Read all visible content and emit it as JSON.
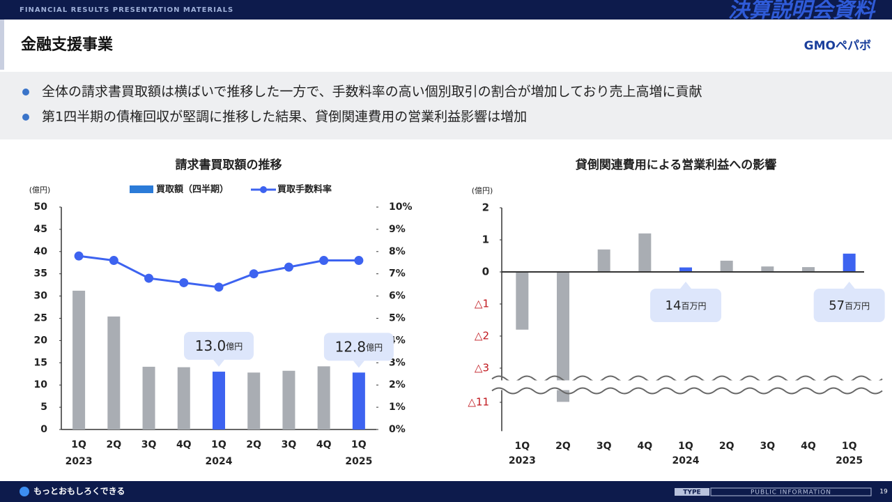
{
  "header": {
    "kicker": "FINANCIAL RESULTS PRESENTATION MATERIALS",
    "badge": "決算説明会資料",
    "title": "金融支援事業",
    "logo": "GMOペパボ"
  },
  "bullets": [
    "全体の請求書買取額は横ばいで推移した一方で、手数料率の高い個別取引の割合が増加しており売上高増に貢献",
    "第1四半期の債権回収が堅調に推移した結果、貸倒関連費用の営業利益影響は増加"
  ],
  "footer": {
    "slogan": "もっとおもしろくできる",
    "type_label": "TYPE",
    "type_value": "PUBLIC INFORMATION",
    "page": "19"
  },
  "chart_data": [
    {
      "type": "bar-line",
      "title": "請求書買取額の推移",
      "y_unit": "(億円)",
      "categories": [
        "1Q",
        "2Q",
        "3Q",
        "4Q",
        "1Q",
        "2Q",
        "3Q",
        "4Q",
        "1Q"
      ],
      "category_groups": [
        "2023",
        null,
        null,
        null,
        "2024",
        null,
        null,
        null,
        "2025"
      ],
      "series": [
        {
          "name": "買取額（四半期）",
          "type": "bar",
          "color": "#2b7bd8",
          "colors": [
            "#a9adb3",
            "#a9adb3",
            "#a9adb3",
            "#a9adb3",
            "#3d63f0",
            "#a9adb3",
            "#a9adb3",
            "#a9adb3",
            "#3d63f0"
          ],
          "values": [
            31.2,
            25.4,
            14.1,
            14.0,
            13.0,
            12.8,
            13.2,
            14.2,
            12.8
          ],
          "value_labels": [
            null,
            null,
            null,
            null,
            "13.0",
            null,
            null,
            null,
            "12.8"
          ],
          "value_label_unit": "億円"
        },
        {
          "name": "買取手数料率",
          "type": "line",
          "axis": "y2",
          "color": "#3d63f0",
          "values": [
            7.8,
            7.6,
            6.8,
            6.6,
            6.4,
            7.0,
            7.3,
            7.6,
            7.6
          ]
        }
      ],
      "ylim": [
        0,
        50
      ],
      "yticks": [
        0,
        5,
        10,
        15,
        20,
        25,
        30,
        35,
        40,
        45,
        50
      ],
      "y2lim": [
        0,
        10
      ],
      "y2ticks": [
        {
          "value": 0,
          "label": "0%"
        },
        {
          "value": 1,
          "label": "1%"
        },
        {
          "value": 2,
          "label": "2%"
        },
        {
          "value": 3,
          "label": "3%"
        },
        {
          "value": 4,
          "label": "4%"
        },
        {
          "value": 5,
          "label": "5%"
        },
        {
          "value": 6,
          "label": "6%"
        },
        {
          "value": 7,
          "label": "7%"
        },
        {
          "value": 8,
          "label": "8%"
        },
        {
          "value": 9,
          "label": "9%"
        },
        {
          "value": 10,
          "label": "10%"
        }
      ]
    },
    {
      "type": "bar",
      "title": "貸倒関連費用による営業利益への影響",
      "y_unit": "(億円)",
      "categories": [
        "1Q",
        "2Q",
        "3Q",
        "4Q",
        "1Q",
        "2Q",
        "3Q",
        "4Q",
        "1Q"
      ],
      "category_groups": [
        "2023",
        null,
        null,
        null,
        "2024",
        null,
        null,
        null,
        "2025"
      ],
      "colors": [
        "#a9adb3",
        "#a9adb3",
        "#a9adb3",
        "#a9adb3",
        "#3d63f0",
        "#a9adb3",
        "#a9adb3",
        "#a9adb3",
        "#3d63f0"
      ],
      "values": [
        -1.8,
        -10.9,
        0.7,
        1.2,
        0.14,
        0.35,
        0.17,
        0.15,
        0.57
      ],
      "value_labels": [
        null,
        null,
        null,
        null,
        "14",
        null,
        null,
        null,
        "57"
      ],
      "value_label_unit": "百万円",
      "axis_break": true,
      "ylim": [
        -11.9,
        2
      ],
      "yticks": [
        2,
        1,
        0,
        {
          "value": -1,
          "label": "△1"
        },
        {
          "value": -2,
          "label": "△2"
        },
        {
          "value": -3,
          "label": "△3"
        },
        {
          "value": -11,
          "label": "△11"
        }
      ]
    }
  ]
}
